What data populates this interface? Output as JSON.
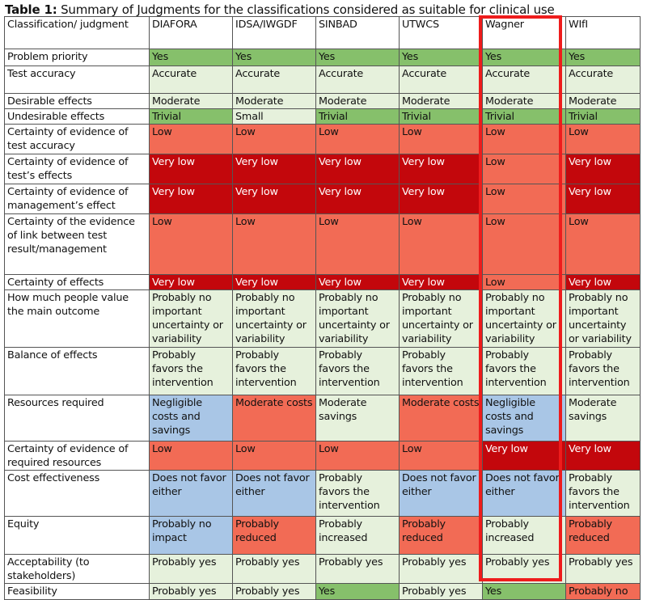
{
  "caption": {
    "prefix": "Table 1:",
    "text": "Summary of Judgments for the classifications considered as suitable for clinical use"
  },
  "colors": {
    "green": "#86c06b",
    "light": "#e6f1dc",
    "salmon": "#f26b55",
    "red": "#c3070c",
    "blue": "#a9c6e6",
    "highlight": "#ee1c1c"
  },
  "table": {
    "header": [
      "Classification/ judgment",
      "DIAFORA",
      "IDSA/IWGDF",
      "SINBAD",
      "UTWCS",
      "Wagner",
      "WIfI"
    ],
    "rows": [
      {
        "label": "Problem priority",
        "cells": [
          "Yes",
          "Yes",
          "Yes",
          "Yes",
          "Yes",
          "Yes"
        ],
        "colors": [
          "green",
          "green",
          "green",
          "green",
          "green",
          "green"
        ]
      },
      {
        "label": "Test accuracy",
        "cells": [
          "Accurate",
          "Accurate",
          "Accurate",
          "Accurate",
          "Accurate",
          "Accurate"
        ],
        "colors": [
          "light",
          "light",
          "light",
          "light",
          "light",
          "light"
        ]
      },
      {
        "label": "Desirable effects",
        "cells": [
          "Moderate",
          "Moderate",
          "Moderate",
          "Moderate",
          "Moderate",
          "Moderate"
        ],
        "colors": [
          "light",
          "light",
          "light",
          "light",
          "light",
          "light"
        ]
      },
      {
        "label": "Undesirable effects",
        "cells": [
          "Trivial",
          "Small",
          "Trivial",
          "Trivial",
          "Trivial",
          "Trivial"
        ],
        "colors": [
          "green",
          "light",
          "green",
          "green",
          "green",
          "green"
        ]
      },
      {
        "label": "Certainty of evidence of test accuracy",
        "cells": [
          "Low",
          "Low",
          "Low",
          "Low",
          "Low",
          "Low"
        ],
        "colors": [
          "salmon",
          "salmon",
          "salmon",
          "salmon",
          "salmon",
          "salmon"
        ]
      },
      {
        "label": "Certainty of evidence of test’s effects",
        "cells": [
          "Very low",
          "Very low",
          "Very low",
          "Very low",
          "Low",
          "Very low"
        ],
        "colors": [
          "red",
          "red",
          "red",
          "red",
          "salmon",
          "red"
        ]
      },
      {
        "label": "Certainty of evidence of management’s effect",
        "cells": [
          "Very low",
          "Very low",
          "Very low",
          "Very low",
          "Low",
          "Very low"
        ],
        "colors": [
          "red",
          "red",
          "red",
          "red",
          "salmon",
          "red"
        ]
      },
      {
        "label": "Certainty of the evidence of link between test result/management",
        "cells": [
          "Low",
          "Low",
          "Low",
          "Low",
          "Low",
          "Low"
        ],
        "colors": [
          "salmon",
          "salmon",
          "salmon",
          "salmon",
          "salmon",
          "salmon"
        ]
      },
      {
        "label": "Certainty of effects",
        "cells": [
          "Very low",
          "Very low",
          "Very low",
          "Very low",
          "Low",
          "Very low"
        ],
        "colors": [
          "red",
          "red",
          "red",
          "red",
          "salmon",
          "red"
        ]
      },
      {
        "label": "How much people value the main outcome",
        "cells": [
          "Probably no important uncertainty or variability",
          "Probably no important uncertainty or variability",
          "Probably no important uncertainty or variability",
          "Probably no important uncertainty or variability",
          "Probably no important uncertainty or variability",
          "Probably no important uncertainty or variability"
        ],
        "colors": [
          "light",
          "light",
          "light",
          "light",
          "light",
          "light"
        ]
      },
      {
        "label": "Balance of effects",
        "cells": [
          "Probably favors the intervention",
          "Probably favors the intervention",
          "Probably favors the intervention",
          "Probably favors the intervention",
          "Probably favors the intervention",
          "Probably favors the intervention"
        ],
        "colors": [
          "light",
          "light",
          "light",
          "light",
          "light",
          "light"
        ]
      },
      {
        "label": "Resources required",
        "cells": [
          "Negligible costs and savings",
          "Moderate costs",
          "Moderate savings",
          "Moderate costs",
          "Negligible costs and savings",
          "Moderate savings"
        ],
        "colors": [
          "blue",
          "salmon",
          "light",
          "salmon",
          "blue",
          "light"
        ]
      },
      {
        "label": "Certainty of evidence of required resources",
        "cells": [
          "Low",
          "Low",
          "Low",
          "Low",
          "Very low",
          "Very low"
        ],
        "colors": [
          "salmon",
          "salmon",
          "salmon",
          "salmon",
          "red",
          "red"
        ]
      },
      {
        "label": "Cost effectiveness",
        "cells": [
          "Does not favor either",
          "Does not favor either",
          "Probably favors the intervention",
          "Does not favor either",
          "Does not favor either",
          "Probably favors the intervention"
        ],
        "colors": [
          "blue",
          "blue",
          "light",
          "blue",
          "blue",
          "light"
        ]
      },
      {
        "label": "Equity",
        "cells": [
          "Probably no impact",
          "Probably reduced",
          "Probably increased",
          "Probably reduced",
          "Probably increased",
          "Probably reduced"
        ],
        "colors": [
          "blue",
          "salmon",
          "light",
          "salmon",
          "light",
          "salmon"
        ]
      },
      {
        "label": "Acceptability (to stakeholders)",
        "cells": [
          "Probably yes",
          "Probably yes",
          "Probably yes",
          "Probably yes",
          "Probably yes",
          "Probably yes"
        ],
        "colors": [
          "light",
          "light",
          "light",
          "light",
          "light",
          "light"
        ]
      },
      {
        "label": "Feasibility",
        "cells": [
          "Probably yes",
          "Probably yes",
          "Yes",
          "Probably yes",
          "Yes",
          "Probably no"
        ],
        "colors": [
          "light",
          "light",
          "green",
          "light",
          "green",
          "salmon"
        ]
      }
    ]
  }
}
